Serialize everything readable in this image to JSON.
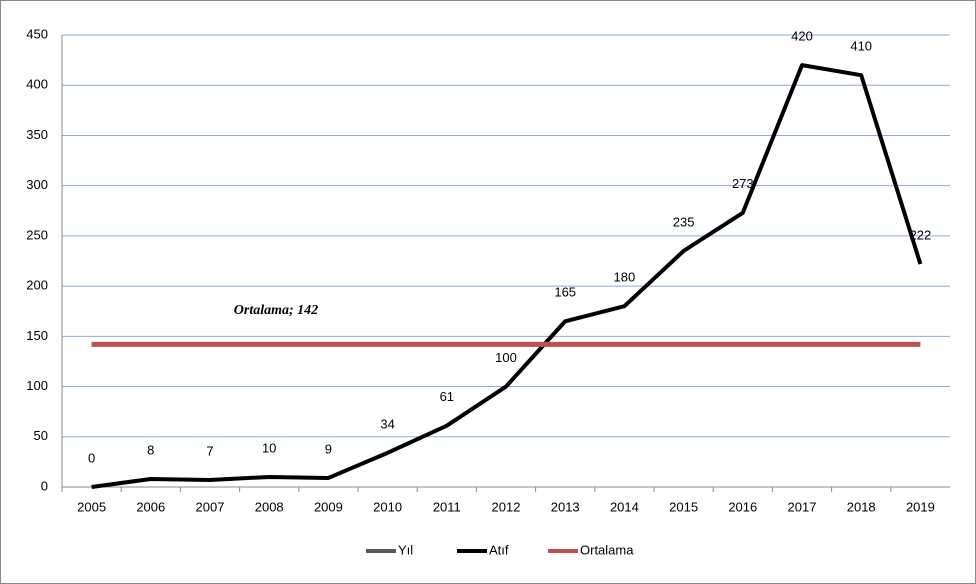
{
  "chart_data": {
    "type": "line",
    "categories": [
      "2005",
      "2006",
      "2007",
      "2008",
      "2009",
      "2010",
      "2011",
      "2012",
      "2013",
      "2014",
      "2015",
      "2016",
      "2017",
      "2018",
      "2019"
    ],
    "series": [
      {
        "name": "Yıl",
        "color": "#595959",
        "values": [
          null,
          null,
          null,
          null,
          null,
          null,
          null,
          null,
          null,
          null,
          null,
          null,
          null,
          null,
          null
        ]
      },
      {
        "name": "Atıf",
        "color": "#000000",
        "values": [
          0,
          8,
          7,
          10,
          9,
          34,
          61,
          100,
          165,
          180,
          235,
          273,
          420,
          410,
          222
        ]
      },
      {
        "name": "Ortalama",
        "color": "#c0504d",
        "values": [
          142,
          142,
          142,
          142,
          142,
          142,
          142,
          142,
          142,
          142,
          142,
          142,
          142,
          142,
          142
        ]
      }
    ],
    "annotation": "Ortalama; 142",
    "ylim": [
      0,
      450
    ],
    "yticks": [
      0,
      50,
      100,
      150,
      200,
      250,
      300,
      350,
      400,
      450
    ],
    "grid": true,
    "grid_color": "#8eaadb",
    "legend": "bottom"
  }
}
